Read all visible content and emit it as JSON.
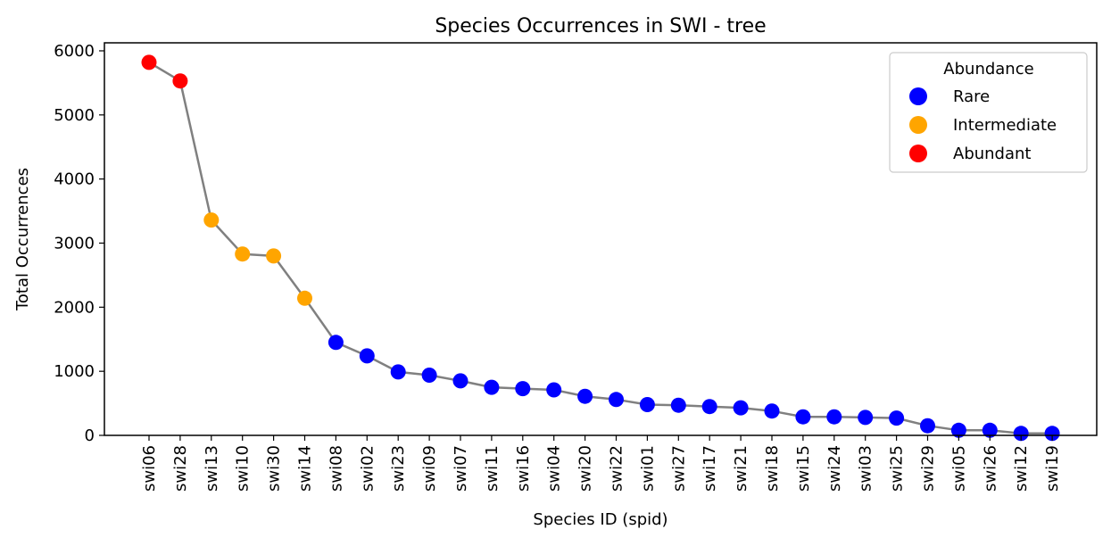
{
  "chart_data": {
    "type": "line",
    "title": "Species Occurrences in SWI - tree",
    "xlabel": "Species ID (spid)",
    "ylabel": "Total Occurrences",
    "ylim": [
      0,
      6125
    ],
    "yticks": [
      0,
      1000,
      2000,
      3000,
      4000,
      5000,
      6000
    ],
    "grid": false,
    "line_color": "#808080",
    "categories": [
      "swi06",
      "swi28",
      "swi13",
      "swi10",
      "swi30",
      "swi14",
      "swi08",
      "swi02",
      "swi23",
      "swi09",
      "swi07",
      "swi11",
      "swi16",
      "swi04",
      "swi20",
      "swi22",
      "swi01",
      "swi27",
      "swi17",
      "swi21",
      "swi18",
      "swi15",
      "swi24",
      "swi03",
      "swi25",
      "swi29",
      "swi05",
      "swi26",
      "swi12",
      "swi19"
    ],
    "values": [
      5820,
      5530,
      3360,
      2830,
      2800,
      2140,
      1450,
      1240,
      990,
      940,
      850,
      750,
      730,
      710,
      610,
      560,
      480,
      470,
      450,
      430,
      380,
      290,
      290,
      280,
      270,
      150,
      80,
      80,
      30,
      30
    ],
    "abundance": [
      "Abundant",
      "Abundant",
      "Intermediate",
      "Intermediate",
      "Intermediate",
      "Intermediate",
      "Rare",
      "Rare",
      "Rare",
      "Rare",
      "Rare",
      "Rare",
      "Rare",
      "Rare",
      "Rare",
      "Rare",
      "Rare",
      "Rare",
      "Rare",
      "Rare",
      "Rare",
      "Rare",
      "Rare",
      "Rare",
      "Rare",
      "Rare",
      "Rare",
      "Rare",
      "Rare",
      "Rare"
    ],
    "legend": {
      "title": "Abundance",
      "placement": "top-right",
      "entries": [
        {
          "label": "Rare",
          "color": "#0000ff"
        },
        {
          "label": "Intermediate",
          "color": "#ffa500"
        },
        {
          "label": "Abundant",
          "color": "#ff0000"
        }
      ]
    }
  }
}
